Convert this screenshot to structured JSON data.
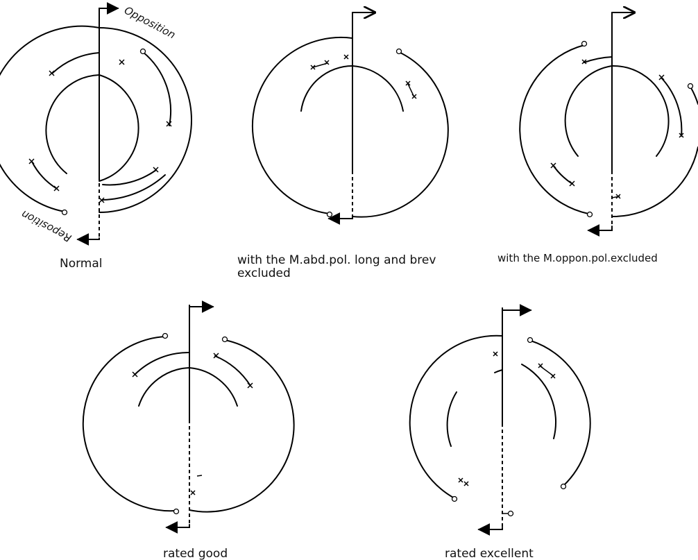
{
  "labels": {
    "opposition": "Opposition",
    "reposition": "Reposition"
  },
  "captions": {
    "normal": "Normal",
    "abd_line1": "with the M.abd.pol. long and brev",
    "abd_line2": "excluded",
    "oppon": "with the M.oppon.pol.excluded",
    "good": "rated good",
    "excellent": "rated excellent"
  }
}
